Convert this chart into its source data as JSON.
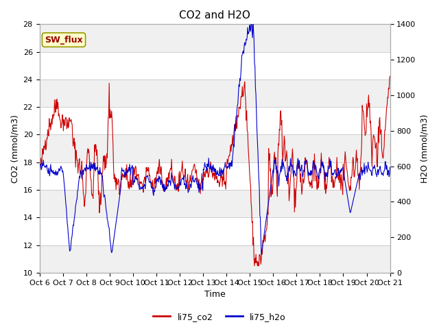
{
  "title": "CO2 and H2O",
  "xlabel": "Time",
  "ylabel_left": "CO2 (mmol/m3)",
  "ylabel_right": "H2O (mmol/m3)",
  "ylim_left": [
    10,
    28
  ],
  "ylim_right": [
    0,
    1400
  ],
  "yticks_left": [
    10,
    12,
    14,
    16,
    18,
    20,
    22,
    24,
    26,
    28
  ],
  "yticks_right": [
    0,
    200,
    400,
    600,
    800,
    1000,
    1200,
    1400
  ],
  "xtick_labels": [
    "Oct 6",
    "Oct 7",
    "Oct 8",
    "Oct 9",
    "Oct 10",
    "Oct 11",
    "Oct 12",
    "Oct 13",
    "Oct 14",
    "Oct 15",
    "Oct 16",
    "Oct 17",
    "Oct 18",
    "Oct 19",
    "Oct 20",
    "Oct 21"
  ],
  "co2_color": "#cc0000",
  "h2o_color": "#0000cc",
  "background_color": "#ffffff",
  "band_light": "#f0f0f0",
  "band_dark": "#e0e0e0",
  "sw_flux_label": "SW_flux",
  "sw_flux_bg": "#ffffcc",
  "sw_flux_border": "#999900",
  "legend_labels": [
    "li75_co2",
    "li75_h2o"
  ],
  "title_fontsize": 11,
  "axis_fontsize": 9,
  "tick_fontsize": 8,
  "figwidth": 6.4,
  "figheight": 4.8,
  "dpi": 100
}
